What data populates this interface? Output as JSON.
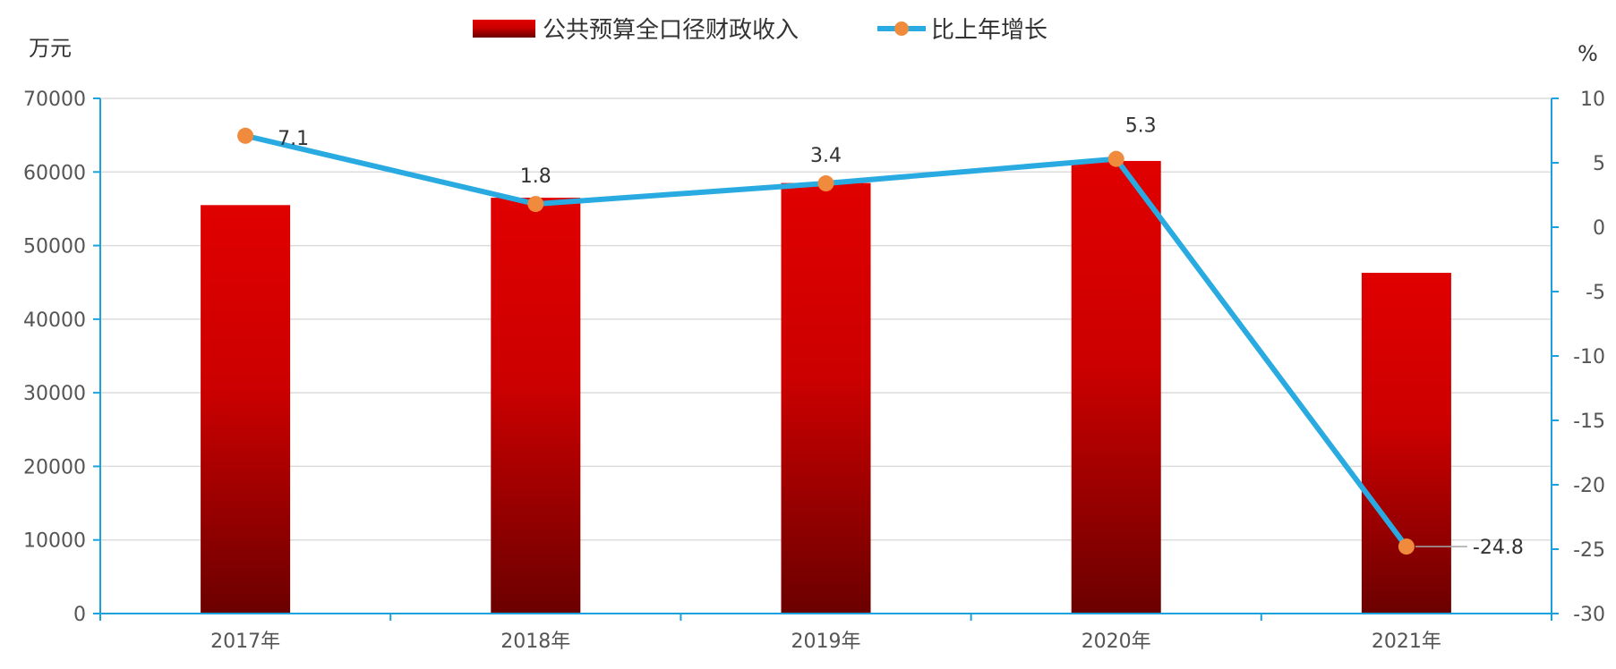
{
  "chart_data": {
    "type": "bar",
    "categories": [
      "2017年",
      "2018年",
      "2019年",
      "2020年",
      "2021年"
    ],
    "series": [
      {
        "name": "公共预算全口径财政收入",
        "type": "bar",
        "axis": "left",
        "values": [
          55500,
          56500,
          58500,
          61500,
          46300
        ]
      },
      {
        "name": "比上年增长",
        "type": "line",
        "axis": "right",
        "values": [
          7.1,
          1.8,
          3.4,
          5.3,
          -24.8
        ],
        "labels": [
          "7.1",
          "1.8",
          "3.4",
          "5.3",
          "-24.8"
        ]
      }
    ],
    "y_left": {
      "label": "万元",
      "min": 0,
      "max": 70000,
      "step": 10000
    },
    "y_right": {
      "label": "%",
      "min": -30,
      "max": 10,
      "step": 5
    },
    "legend_position": "top",
    "grid": true,
    "colors": {
      "bar_top": "#e00000",
      "bar_bottom": "#6b0000",
      "line": "#29abe2",
      "marker": "#f08a3c"
    }
  }
}
